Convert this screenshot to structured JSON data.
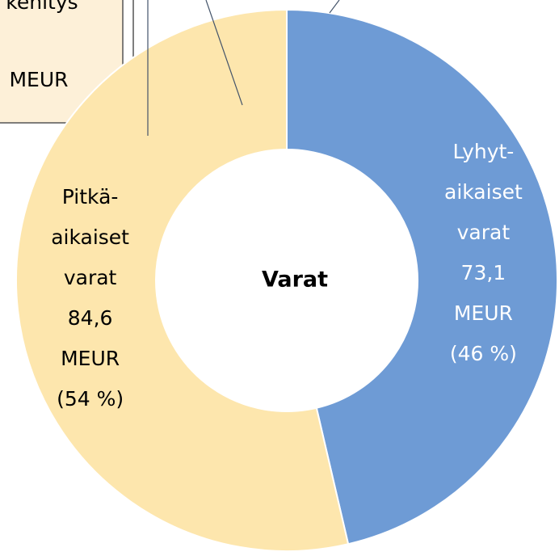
{
  "chart_data": {
    "type": "donut",
    "center_label": "Varat",
    "categories": [
      [
        "Lyhyt-",
        "aikaiset",
        "varat"
      ],
      [
        "Pitkä-",
        "aikaiset",
        "varat"
      ]
    ],
    "values": [
      73.1,
      84.6
    ],
    "value_labels": [
      "73,1",
      "84,6"
    ],
    "unit": "MEUR",
    "percents": [
      46,
      54
    ],
    "percent_labels": [
      "(46 %)",
      "(54 %)"
    ],
    "colors": [
      "#6e9bd5",
      "#fde6ad"
    ],
    "label_colors": [
      "#ffffff",
      "#000000"
    ],
    "annotations": [
      {
        "lines": [
          "kehitys",
          "MEUR"
        ]
      }
    ]
  }
}
